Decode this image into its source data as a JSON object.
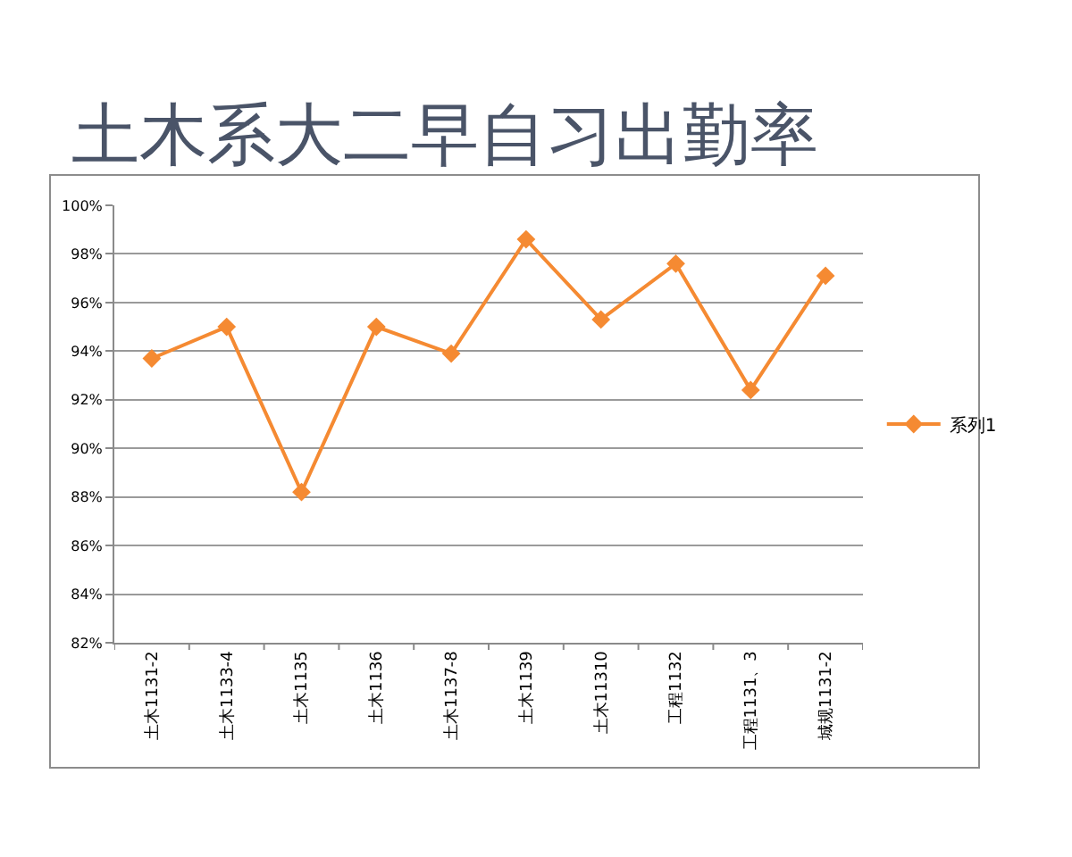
{
  "chart_data": {
    "type": "line",
    "title": "土木系大二早自习出勤率",
    "categories": [
      "土木1131-2",
      "土木1133-4",
      "土木1135",
      "土木1136",
      "土木1137-8",
      "土木1139",
      "土木11310",
      "工程1132",
      "工程1131、3",
      "城规1131-2"
    ],
    "series": [
      {
        "name": "系列1",
        "color": "#f58a32",
        "values": [
          93.7,
          95.0,
          88.2,
          95.0,
          93.9,
          98.6,
          95.3,
          97.6,
          92.4,
          97.1
        ]
      }
    ],
    "ylim": [
      82,
      100
    ],
    "yticks": [
      {
        "value": 82,
        "label": "82%"
      },
      {
        "value": 84,
        "label": "84%"
      },
      {
        "value": 86,
        "label": "86%"
      },
      {
        "value": 88,
        "label": "88%"
      },
      {
        "value": 90,
        "label": "90%"
      },
      {
        "value": 92,
        "label": "92%"
      },
      {
        "value": 94,
        "label": "94%"
      },
      {
        "value": 96,
        "label": "96%"
      },
      {
        "value": 98,
        "label": "98%"
      },
      {
        "value": 100,
        "label": "100%"
      }
    ],
    "grid": "y",
    "legend": "right",
    "marker": "diamond",
    "line_style": "solid"
  }
}
